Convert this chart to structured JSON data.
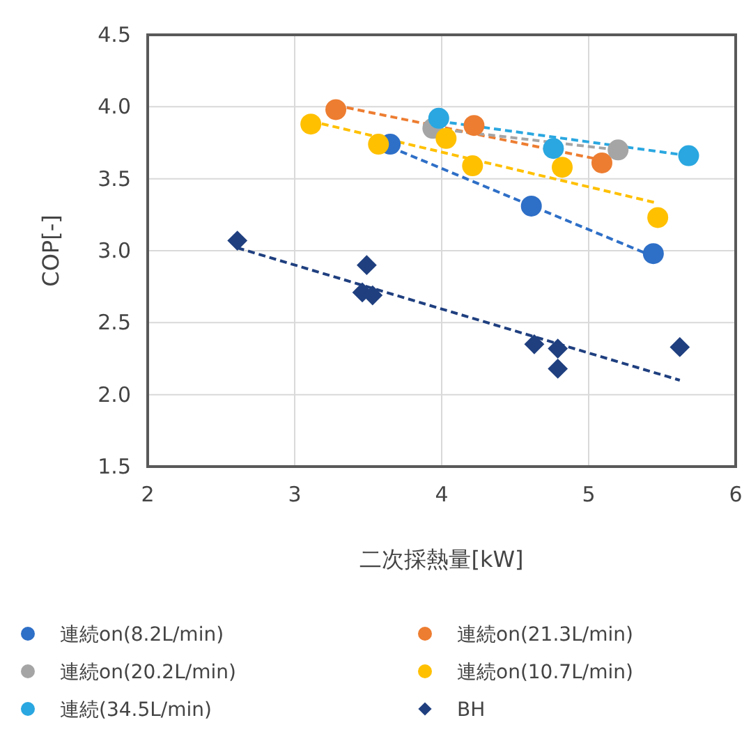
{
  "chart_data": {
    "type": "scatter",
    "xlabel": "二次採熱量[kW]",
    "ylabel": "COP[-]",
    "xlim": [
      2,
      6
    ],
    "xticks": [
      2,
      3,
      4,
      5,
      6
    ],
    "ylim": [
      1.5,
      4.5
    ],
    "yticks": [
      {
        "value": 1.5,
        "label": "1.5"
      },
      {
        "value": 2,
        "label": "2.0"
      },
      {
        "value": 2.5,
        "label": "2.5"
      },
      {
        "value": 3,
        "label": "3.0"
      },
      {
        "value": 3.5,
        "label": "3.5"
      },
      {
        "value": 4,
        "label": "4.0"
      },
      {
        "value": 4.5,
        "label": "4.5"
      }
    ],
    "grid": true,
    "legend": "bottom",
    "marker": "circle",
    "series": [
      {
        "name": "連続on(8.2L/min)",
        "color": "#2e6fc7",
        "x": [
          3.65,
          4.61,
          5.44
        ],
        "values": [
          3.74,
          3.31,
          2.98
        ]
      },
      {
        "name": "連続on(21.3L/min)",
        "color": "#ed7d31",
        "x": [
          3.28,
          4.22,
          5.09
        ],
        "values": [
          3.98,
          3.87,
          3.61
        ]
      },
      {
        "name": "連続on(20.2L/min)",
        "color": "#a5a5a5",
        "x": [
          3.94,
          5.2
        ],
        "values": [
          3.85,
          3.7
        ]
      },
      {
        "name": "連続on(10.7L/min)",
        "color": "#ffc000",
        "x": [
          3.11,
          3.57,
          4.03,
          4.21,
          4.82,
          5.47
        ],
        "values": [
          3.88,
          3.74,
          3.78,
          3.59,
          3.58,
          3.23
        ]
      },
      {
        "name": "連続(34.5L/min)",
        "color": "#2aa7e0",
        "x": [
          3.98,
          4.76,
          5.68
        ],
        "values": [
          3.92,
          3.71,
          3.66
        ]
      },
      {
        "name": "BH",
        "color": "#1f3f7f",
        "marker": "diamond",
        "x": [
          2.61,
          3.49,
          3.46,
          3.53,
          4.63,
          4.79,
          4.79,
          5.62
        ],
        "values": [
          3.07,
          2.9,
          2.71,
          2.69,
          2.35,
          2.32,
          2.18,
          2.33
        ]
      },
      {
        "type": "line",
        "color": "#2e6fc7",
        "line_style": "dashed",
        "marker": "none",
        "x": [
          3.65,
          5.44
        ],
        "values": [
          3.72,
          2.96
        ]
      },
      {
        "type": "line",
        "color": "#ed7d31",
        "line_style": "dashed",
        "marker": "none",
        "x": [
          3.28,
          5.09
        ],
        "values": [
          4.01,
          3.63
        ]
      },
      {
        "type": "line",
        "color": "#a5a5a5",
        "line_style": "dashed",
        "marker": "none",
        "x": [
          3.94,
          5.2
        ],
        "values": [
          3.85,
          3.7
        ]
      },
      {
        "type": "line",
        "color": "#ffc000",
        "line_style": "dashed",
        "marker": "none",
        "x": [
          3.11,
          5.47
        ],
        "values": [
          3.9,
          3.33
        ]
      },
      {
        "type": "line",
        "color": "#2aa7e0",
        "line_style": "dashed",
        "marker": "none",
        "x": [
          3.98,
          5.68
        ],
        "values": [
          3.9,
          3.66
        ]
      },
      {
        "type": "line",
        "color": "#1f3f7f",
        "line_style": "dashed",
        "marker": "none",
        "x": [
          2.61,
          5.62
        ],
        "values": [
          3.02,
          2.1
        ]
      }
    ]
  }
}
